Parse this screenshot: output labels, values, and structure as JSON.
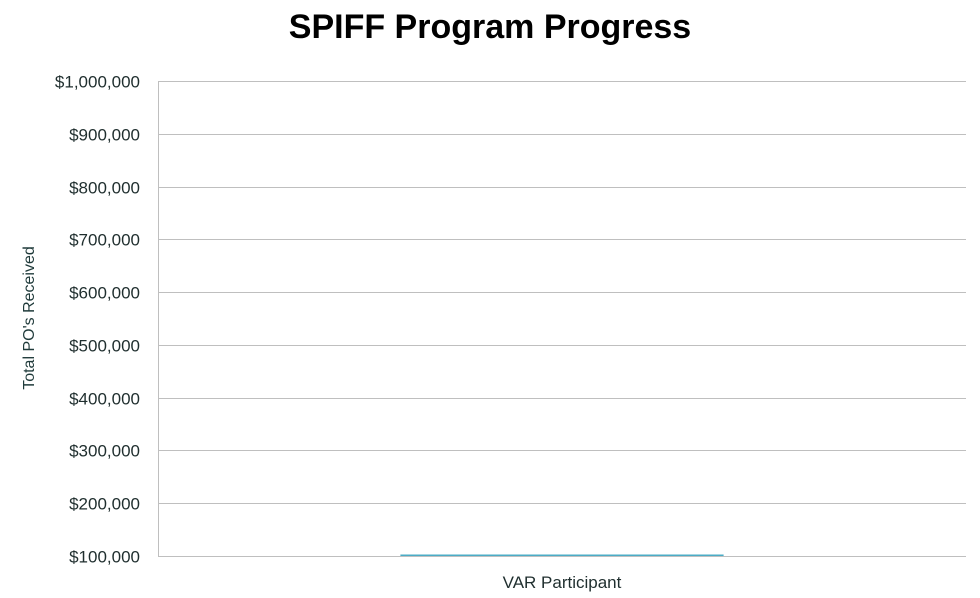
{
  "chart_data": {
    "type": "bar",
    "title": "SPIFF Program Progress",
    "xlabel": "",
    "ylabel": "Total PO's Received",
    "categories": [
      "VAR Participant"
    ],
    "values": [
      100000
    ],
    "ylim": [
      100000,
      1000000
    ],
    "yticks": [
      "$100,000",
      "$200,000",
      "$300,000",
      "$400,000",
      "$500,000",
      "$600,000",
      "$700,000",
      "$800,000",
      "$900,000",
      "$1,000,000"
    ],
    "ytick_values": [
      100000,
      200000,
      300000,
      400000,
      500000,
      600000,
      700000,
      800000,
      900000,
      1000000
    ],
    "grid": true,
    "colors": {
      "bar": "#4bacc6",
      "grid": "#bfbfbf",
      "axis": "#bfbfbf"
    }
  }
}
